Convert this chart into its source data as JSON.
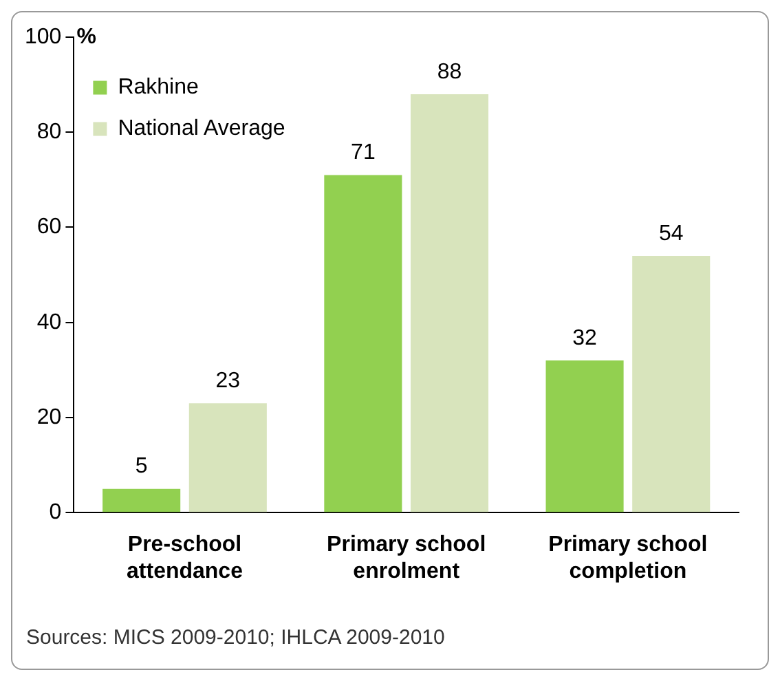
{
  "chart_data": {
    "type": "bar",
    "ylabel": "%",
    "categories": [
      "Pre-school attendance",
      "Primary school enrolment",
      "Primary school completion"
    ],
    "series": [
      {
        "name": "Rakhine",
        "color": "#92d050",
        "values": [
          5,
          71,
          32
        ]
      },
      {
        "name": "National Average",
        "color": "#d8e4bc",
        "values": [
          23,
          88,
          54
        ]
      }
    ],
    "ylim": [
      0,
      100
    ],
    "yticks": [
      0,
      20,
      40,
      60,
      80,
      100
    ],
    "grid": false,
    "legend": "top left",
    "data_labels": true,
    "annotations": [
      "Sources: MICS 2009-2010;  IHLCA 2009-2010"
    ]
  }
}
